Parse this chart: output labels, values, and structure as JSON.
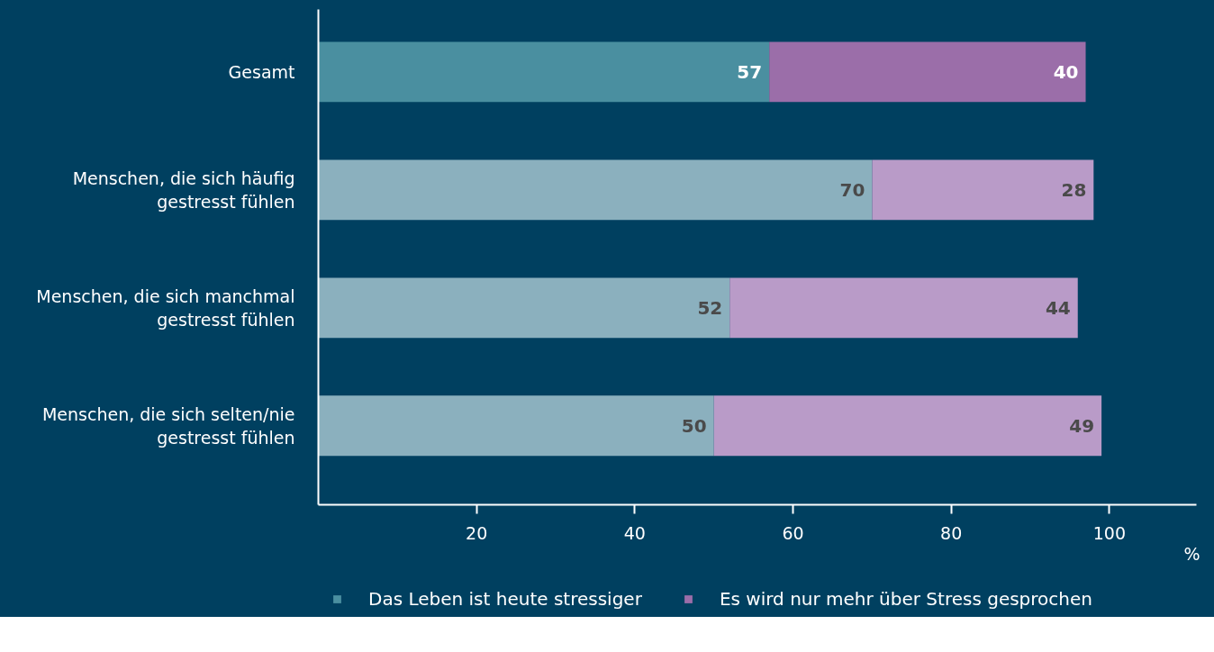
{
  "chart_data": {
    "type": "bar",
    "orientation": "horizontal",
    "stacked": true,
    "categories": [
      "Gesamt",
      "Menschen, die sich häufig\ngestresst fühlen",
      "Menschen, die sich manchmal\ngestresst fühlen",
      "Menschen, die sich selten/nie\ngestresst fühlen"
    ],
    "series": [
      {
        "name": "Das Leben ist heute stressiger",
        "color": "#4a8fa0",
        "colors": [
          "#4a8fa0",
          "#8bb0be",
          "#8bb0be",
          "#8bb0be"
        ],
        "values": [
          57,
          70,
          52,
          50
        ]
      },
      {
        "name": "Es wird nur mehr über Stress gesprochen",
        "color": "#9b6ea9",
        "colors": [
          "#9b6ea9",
          "#b99bc8",
          "#b99bc8",
          "#b99bc8"
        ],
        "values": [
          40,
          28,
          44,
          49
        ]
      }
    ],
    "data_labels": true,
    "xlabel": "%",
    "xlim": [
      0,
      111
    ],
    "xticks": [
      20,
      40,
      60,
      80,
      100
    ],
    "grid": false,
    "legend": "bottom"
  }
}
